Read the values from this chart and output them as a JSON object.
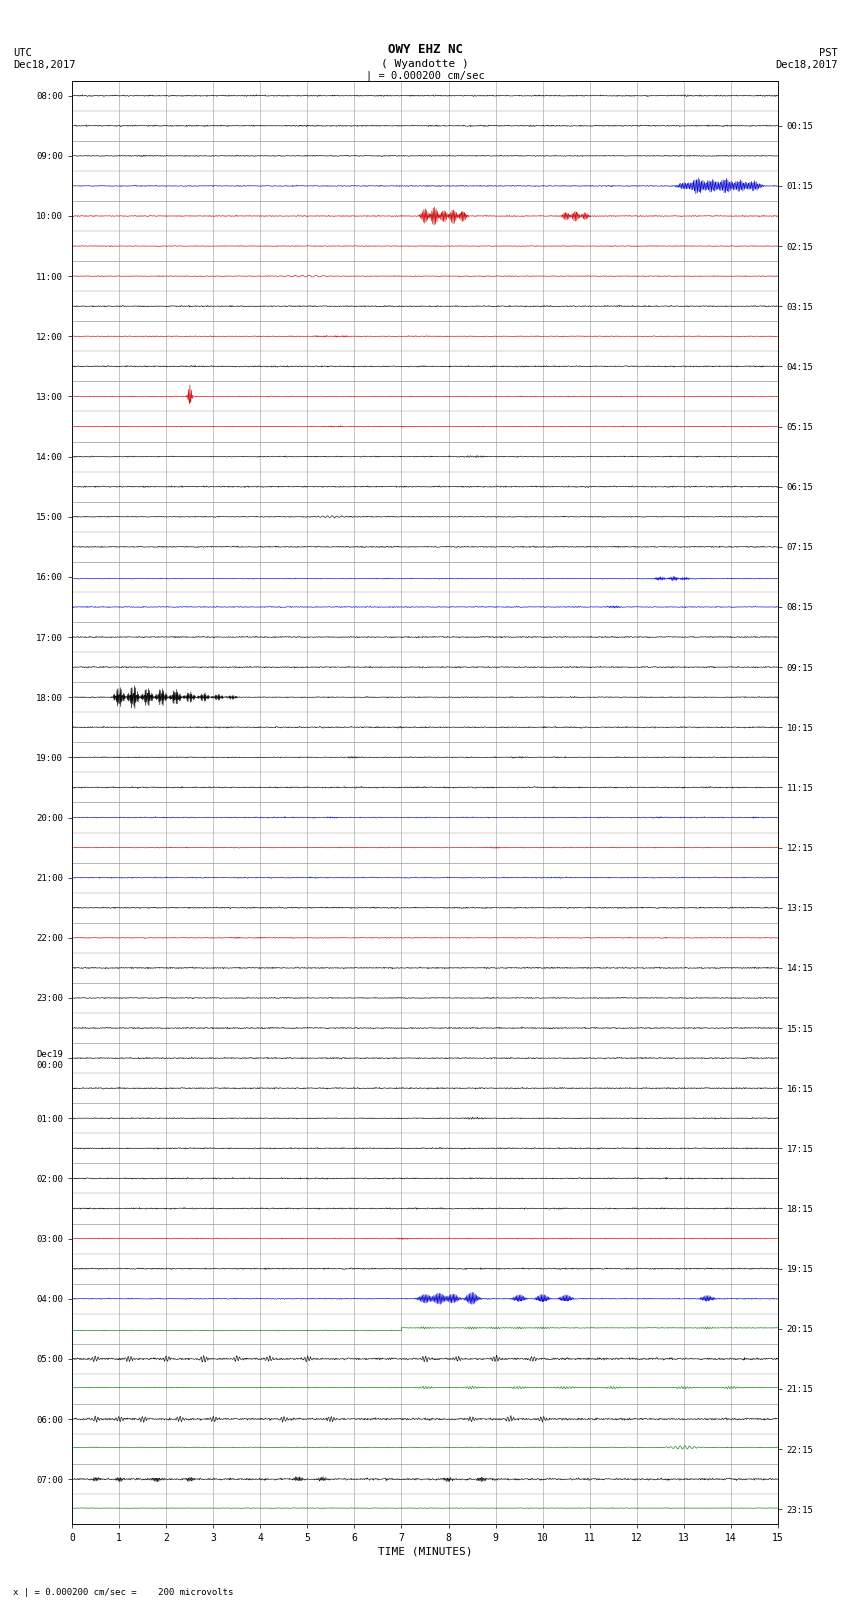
{
  "title_line1": "OWY EHZ NC",
  "title_line2": "( Wyandotte )",
  "scale_label": "| = 0.000200 cm/sec",
  "utc_label": "UTC\nDec18,2017",
  "pst_label": "PST\nDec18,2017",
  "bottom_label": "x | = 0.000200 cm/sec =    200 microvolts",
  "xlabel": "TIME (MINUTES)",
  "left_times_major": [
    "08:00",
    "09:00",
    "10:00",
    "11:00",
    "12:00",
    "13:00",
    "14:00",
    "15:00",
    "16:00",
    "17:00",
    "18:00",
    "19:00",
    "20:00",
    "21:00",
    "22:00",
    "23:00",
    "Dec19\n00:00",
    "01:00",
    "02:00",
    "03:00",
    "04:00",
    "05:00",
    "06:00",
    "07:00"
  ],
  "right_times_major": [
    "00:15",
    "01:15",
    "02:15",
    "03:15",
    "04:15",
    "05:15",
    "06:15",
    "07:15",
    "08:15",
    "09:15",
    "10:15",
    "11:15",
    "12:15",
    "13:15",
    "14:15",
    "15:15",
    "16:15",
    "17:15",
    "18:15",
    "19:15",
    "20:15",
    "21:15",
    "22:15",
    "23:15"
  ],
  "n_hours": 24,
  "n_subrows": 2,
  "n_minutes": 15,
  "bg_color": "#ffffff",
  "grid_color": "#999999",
  "fig_width": 8.5,
  "fig_height": 16.13
}
